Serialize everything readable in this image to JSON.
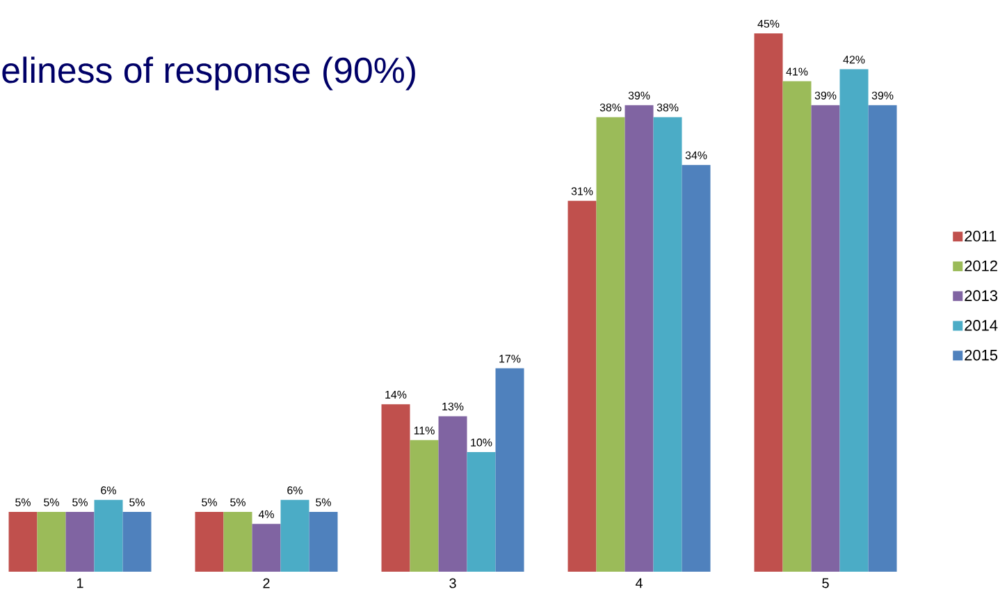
{
  "chart_data": {
    "type": "bar",
    "title": "eliness of response (90%)",
    "categories": [
      "1",
      "2",
      "3",
      "4",
      "5"
    ],
    "series": [
      {
        "name": "2011",
        "color": "#c0504d",
        "values": [
          5,
          5,
          14,
          31,
          45
        ],
        "value_labels": [
          "5%",
          "5%",
          "14%",
          "31%",
          "45%"
        ]
      },
      {
        "name": "2012",
        "color": "#9bbb59",
        "values": [
          5,
          5,
          11,
          38,
          41
        ],
        "value_labels": [
          "5%",
          "5%",
          "11%",
          "38%",
          "41%"
        ]
      },
      {
        "name": "2013",
        "color": "#8064a2",
        "values": [
          5,
          4,
          13,
          39,
          39
        ],
        "value_labels": [
          "5%",
          "4%",
          "13%",
          "39%",
          "39%"
        ]
      },
      {
        "name": "2014",
        "color": "#4bacc6",
        "values": [
          6,
          6,
          10,
          38,
          42
        ],
        "value_labels": [
          "6%",
          "6%",
          "10%",
          "38%",
          "42%"
        ]
      },
      {
        "name": "2015",
        "color": "#4f81bd",
        "values": [
          5,
          5,
          17,
          34,
          39
        ],
        "value_labels": [
          "5%",
          "5%",
          "17%",
          "34%",
          "39%"
        ]
      }
    ],
    "legend": "right"
  }
}
